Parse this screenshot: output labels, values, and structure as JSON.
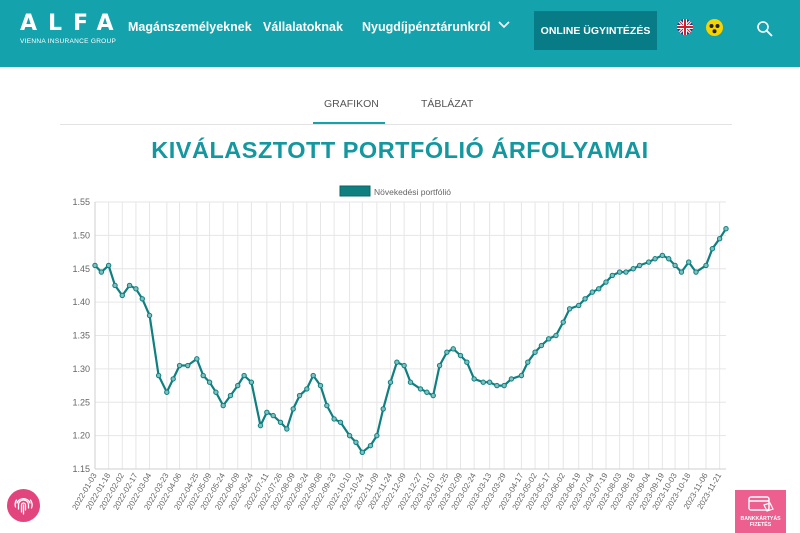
{
  "header": {
    "logo_word": "ALFA",
    "logo_sub": "VIENNA INSURANCE GROUP",
    "nav": [
      "Magánszemélyeknek",
      "Vállalatoknak",
      "Nyugdíjpénztárunkról"
    ],
    "online_button": "ONLINE ÜGYINTÉZÉS",
    "icons": [
      "uk-flag-icon",
      "accessibility-icon",
      "search-icon",
      "chevron-down-icon"
    ]
  },
  "tabs": [
    "GRAFIKON",
    "TÁBLÁZAT"
  ],
  "active_tab": "GRAFIKON",
  "heading": "KIVÁLASZTOTT PORTFÓLIÓ ÁRFOLYAMAI",
  "floating": {
    "fingerprint_icon": "fingerprint-icon",
    "pay_label": "BANKKÁRTYÁS FIZETÉS"
  },
  "colors": {
    "brand": "#14a3ad",
    "dark_teal": "#087c86",
    "line": "#0f7f80",
    "pink": "#e2457d"
  },
  "chart_data": {
    "type": "line",
    "title": "",
    "legend": "Növekedési portfólió",
    "legend_position": "top",
    "grid": true,
    "ylim": [
      1.15,
      1.55
    ],
    "yticks": [
      "1.15",
      "1.20",
      "1.25",
      "1.30",
      "1.35",
      "1.40",
      "1.45",
      "1.50",
      "1.55"
    ],
    "xticks": [
      "2022-01-03",
      "2022-01-18",
      "2022-02-02",
      "2022-02-17",
      "2022-03-04",
      "2022-03-23",
      "2022-04-06",
      "2022-04-25",
      "2022-05-09",
      "2022-05-24",
      "2022-06-09",
      "2022-06-24",
      "2022-07-11",
      "2022-07-26",
      "2022-08-09",
      "2022-08-24",
      "2022-09-08",
      "2022-09-23",
      "2022-10-10",
      "2022-10-24",
      "2022-11-09",
      "2022-11-24",
      "2022-12-09",
      "2022-12-27",
      "2023-01-10",
      "2023-01-25",
      "2023-02-09",
      "2023-02-24",
      "2023-03-13",
      "2023-03-29",
      "2023-04-17",
      "2023-05-02",
      "2023-05-17",
      "2023-06-02",
      "2023-06-19",
      "2023-07-04",
      "2023-07-19",
      "2023-08-03",
      "2023-08-18",
      "2023-09-04",
      "2023-09-19",
      "2023-10-03",
      "2023-10-18",
      "2023-11-06",
      "2023-11-21"
    ],
    "series": [
      {
        "name": "Növekedési portfólió",
        "x": [
          "2022-01-03",
          "2022-01-10",
          "2022-01-18",
          "2022-01-25",
          "2022-02-02",
          "2022-02-10",
          "2022-02-17",
          "2022-02-24",
          "2022-03-04",
          "2022-03-14",
          "2022-03-23",
          "2022-03-30",
          "2022-04-06",
          "2022-04-15",
          "2022-04-25",
          "2022-05-02",
          "2022-05-09",
          "2022-05-16",
          "2022-05-24",
          "2022-06-01",
          "2022-06-09",
          "2022-06-16",
          "2022-06-24",
          "2022-07-04",
          "2022-07-11",
          "2022-07-18",
          "2022-07-26",
          "2022-08-02",
          "2022-08-09",
          "2022-08-16",
          "2022-08-24",
          "2022-08-31",
          "2022-09-08",
          "2022-09-15",
          "2022-09-23",
          "2022-09-30",
          "2022-10-10",
          "2022-10-17",
          "2022-10-24",
          "2022-11-02",
          "2022-11-09",
          "2022-11-16",
          "2022-11-24",
          "2022-12-01",
          "2022-12-09",
          "2022-12-16",
          "2022-12-27",
          "2023-01-03",
          "2023-01-10",
          "2023-01-17",
          "2023-01-25",
          "2023-02-01",
          "2023-02-09",
          "2023-02-16",
          "2023-02-24",
          "2023-03-06",
          "2023-03-13",
          "2023-03-21",
          "2023-03-29",
          "2023-04-06",
          "2023-04-17",
          "2023-04-24",
          "2023-05-02",
          "2023-05-09",
          "2023-05-17",
          "2023-05-25",
          "2023-06-02",
          "2023-06-09",
          "2023-06-19",
          "2023-06-26",
          "2023-07-04",
          "2023-07-11",
          "2023-07-19",
          "2023-07-26",
          "2023-08-03",
          "2023-08-10",
          "2023-08-18",
          "2023-08-25",
          "2023-09-04",
          "2023-09-11",
          "2023-09-19",
          "2023-09-26",
          "2023-10-03",
          "2023-10-10",
          "2023-10-18",
          "2023-10-26",
          "2023-11-06",
          "2023-11-13",
          "2023-11-21",
          "2023-11-28"
        ],
        "values": [
          1.455,
          1.445,
          1.455,
          1.425,
          1.41,
          1.425,
          1.42,
          1.405,
          1.38,
          1.29,
          1.265,
          1.285,
          1.305,
          1.305,
          1.315,
          1.29,
          1.28,
          1.265,
          1.245,
          1.26,
          1.275,
          1.29,
          1.28,
          1.215,
          1.235,
          1.23,
          1.22,
          1.21,
          1.24,
          1.26,
          1.27,
          1.29,
          1.275,
          1.245,
          1.225,
          1.22,
          1.2,
          1.19,
          1.175,
          1.185,
          1.2,
          1.24,
          1.28,
          1.31,
          1.305,
          1.28,
          1.27,
          1.265,
          1.26,
          1.305,
          1.325,
          1.33,
          1.32,
          1.31,
          1.285,
          1.28,
          1.28,
          1.275,
          1.275,
          1.285,
          1.29,
          1.31,
          1.325,
          1.335,
          1.345,
          1.35,
          1.37,
          1.39,
          1.395,
          1.405,
          1.415,
          1.42,
          1.43,
          1.44,
          1.445,
          1.445,
          1.45,
          1.455,
          1.46,
          1.465,
          1.47,
          1.465,
          1.455,
          1.445,
          1.46,
          1.445,
          1.455,
          1.48,
          1.495,
          1.51
        ]
      }
    ]
  }
}
